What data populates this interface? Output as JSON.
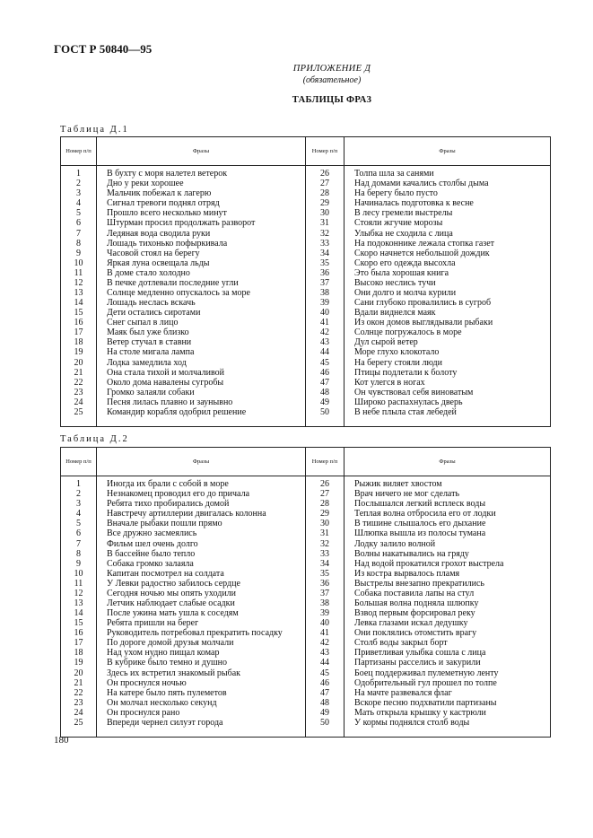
{
  "header": {
    "doc_id": "ГОСТ Р 50840—95"
  },
  "appendix": {
    "title": "ПРИЛОЖЕНИЕ Д",
    "note": "(обязательное)",
    "heading": "ТАБЛИЦЫ ФРАЗ"
  },
  "tables": [
    {
      "caption": "Таблица Д.1",
      "columns": {
        "num": "Номер п/п",
        "phrase": "Фразы"
      },
      "rows": [
        [
          "1",
          "В бухту с моря налетел ветерок"
        ],
        [
          "2",
          "Дно у реки хорошее"
        ],
        [
          "3",
          "Мальчик побежал к лагерю"
        ],
        [
          "4",
          "Сигнал тревоги поднял отряд"
        ],
        [
          "5",
          "Прошло всего несколько минут"
        ],
        [
          "6",
          "Штурман просил продолжать разворот"
        ],
        [
          "7",
          "Ледяная вода сводила руки"
        ],
        [
          "8",
          "Лошадь тихонько пофыркивала"
        ],
        [
          "9",
          "Часовой стоял на берегу"
        ],
        [
          "10",
          "Яркая луна освещала льды"
        ],
        [
          "11",
          "В доме стало холодно"
        ],
        [
          "12",
          "В печке дотлевали последние угли"
        ],
        [
          "13",
          "Солнце медленно опускалось за море"
        ],
        [
          "14",
          "Лошадь неслась вскачь"
        ],
        [
          "15",
          "Дети остались сиротами"
        ],
        [
          "16",
          "Снег сыпал в лицо"
        ],
        [
          "17",
          "Маяк был уже близко"
        ],
        [
          "18",
          "Ветер стучал в ставни"
        ],
        [
          "19",
          "На столе мигала лампа"
        ],
        [
          "20",
          "Лодка замедлила ход"
        ],
        [
          "21",
          "Она стала тихой и молчаливой"
        ],
        [
          "22",
          "Около дома навалены сугробы"
        ],
        [
          "23",
          "Громко залаяли собаки"
        ],
        [
          "24",
          "Песня лилась плавно и заунывно"
        ],
        [
          "25",
          "Командир корабля одобрил решение"
        ],
        [
          "26",
          "Толпа шла за санями"
        ],
        [
          "27",
          "Над домами качались столбы дыма"
        ],
        [
          "28",
          "На берегу было пусто"
        ],
        [
          "29",
          "Начиналась подготовка к весне"
        ],
        [
          "30",
          "В лесу гремели выстрелы"
        ],
        [
          "31",
          "Стояли жгучие морозы"
        ],
        [
          "32",
          "Улыбка не сходила с лица"
        ],
        [
          "33",
          "На подоконнике лежала стопка газет"
        ],
        [
          "34",
          "Скоро начнется небольшой дождик"
        ],
        [
          "35",
          "Скоро его одежда высохла"
        ],
        [
          "36",
          "Это была хорошая книга"
        ],
        [
          "37",
          "Высоко неслись тучи"
        ],
        [
          "38",
          "Они долго и молча курили"
        ],
        [
          "39",
          "Сани глубоко провалились в сугроб"
        ],
        [
          "40",
          "Вдали виднелся маяк"
        ],
        [
          "41",
          "Из окон домов выглядывали рыбаки"
        ],
        [
          "42",
          "Солнце погружалось в море"
        ],
        [
          "43",
          "Дул сырой ветер"
        ],
        [
          "44",
          "Море глухо клокотало"
        ],
        [
          "45",
          "На берегу стояли люди"
        ],
        [
          "46",
          "Птицы подлетали к болоту"
        ],
        [
          "47",
          "Кот улегся в ногах"
        ],
        [
          "48",
          "Он чувствовал себя виноватым"
        ],
        [
          "49",
          "Широко распахнулась дверь"
        ],
        [
          "50",
          "В небе плыла стая лебедей"
        ]
      ]
    },
    {
      "caption": "Таблица Д.2",
      "columns": {
        "num": "Номер п/п",
        "phrase": "Фразы"
      },
      "rows": [
        [
          "1",
          "Иногда их брали с собой в море"
        ],
        [
          "2",
          "Незнакомец проводил его до причала"
        ],
        [
          "3",
          "Ребята тихо пробирались домой"
        ],
        [
          "4",
          "Навстречу артиллерии двигалась колонна"
        ],
        [
          "5",
          "Вначале рыбаки пошли прямо"
        ],
        [
          "6",
          "Все дружно засмеялись"
        ],
        [
          "7",
          "Фильм шел очень долго"
        ],
        [
          "8",
          "В бассейне было тепло"
        ],
        [
          "9",
          "Собака громко залаяла"
        ],
        [
          "10",
          "Капитан посмотрел на солдата"
        ],
        [
          "11",
          "У Левки радостно забилось сердце"
        ],
        [
          "12",
          "Сегодня ночью мы опять уходили"
        ],
        [
          "13",
          "Летчик наблюдает слабые осадки"
        ],
        [
          "14",
          "После ужина мать ушла к соседям"
        ],
        [
          "15",
          "Ребята пришли на берег"
        ],
        [
          "16",
          "Руководитель потребовал прекратить посадку"
        ],
        [
          "17",
          "По дороге домой друзья молчали"
        ],
        [
          "18",
          "Над ухом нудно пищал комар"
        ],
        [
          "19",
          "В кубрике было темно и душно"
        ],
        [
          "20",
          "Здесь их встретил знакомый рыбак"
        ],
        [
          "21",
          "Он проснулся ночью"
        ],
        [
          "22",
          "На катере было пять пулеметов"
        ],
        [
          "23",
          "Он молчал несколько секунд"
        ],
        [
          "24",
          "Он проснулся рано"
        ],
        [
          "25",
          "Впереди чернел силуэт города"
        ],
        [
          "26",
          "Рыжик виляет хвостом"
        ],
        [
          "27",
          "Врач ничего не мог сделать"
        ],
        [
          "28",
          "Послышался легкий всплеск воды"
        ],
        [
          "29",
          "Теплая волна отбросила его от лодки"
        ],
        [
          "30",
          "В тишине слышалось его дыхание"
        ],
        [
          "31",
          "Шлюпка вышла из полосы тумана"
        ],
        [
          "32",
          "Лодку залило волной"
        ],
        [
          "33",
          "Волны накатывались на гряду"
        ],
        [
          "34",
          "Над водой прокатился грохот выстрела"
        ],
        [
          "35",
          "Из костра вырвалось пламя"
        ],
        [
          "36",
          "Выстрелы внезапно прекратились"
        ],
        [
          "37",
          "Собака поставила лапы на стул"
        ],
        [
          "38",
          "Большая волна подняла шлюпку"
        ],
        [
          "39",
          "Взвод первым форсировал реку"
        ],
        [
          "40",
          "Левка глазами искал дедушку"
        ],
        [
          "41",
          "Они поклялись отомстить врагу"
        ],
        [
          "42",
          "Столб воды закрыл борт"
        ],
        [
          "43",
          "Приветливая улыбка сошла с лица"
        ],
        [
          "44",
          "Партизаны расселись и закурили"
        ],
        [
          "45",
          "Боец поддерживал пулеметную ленту"
        ],
        [
          "46",
          "Одобрительный гул прошел по толпе"
        ],
        [
          "47",
          "На мачте развевался флаг"
        ],
        [
          "48",
          "Вскоре песню подхватили партизаны"
        ],
        [
          "49",
          "Мать открыла крышку у кастрюли"
        ],
        [
          "50",
          "У кормы поднялся столб воды"
        ]
      ]
    }
  ],
  "footer": {
    "page_number": "180"
  }
}
